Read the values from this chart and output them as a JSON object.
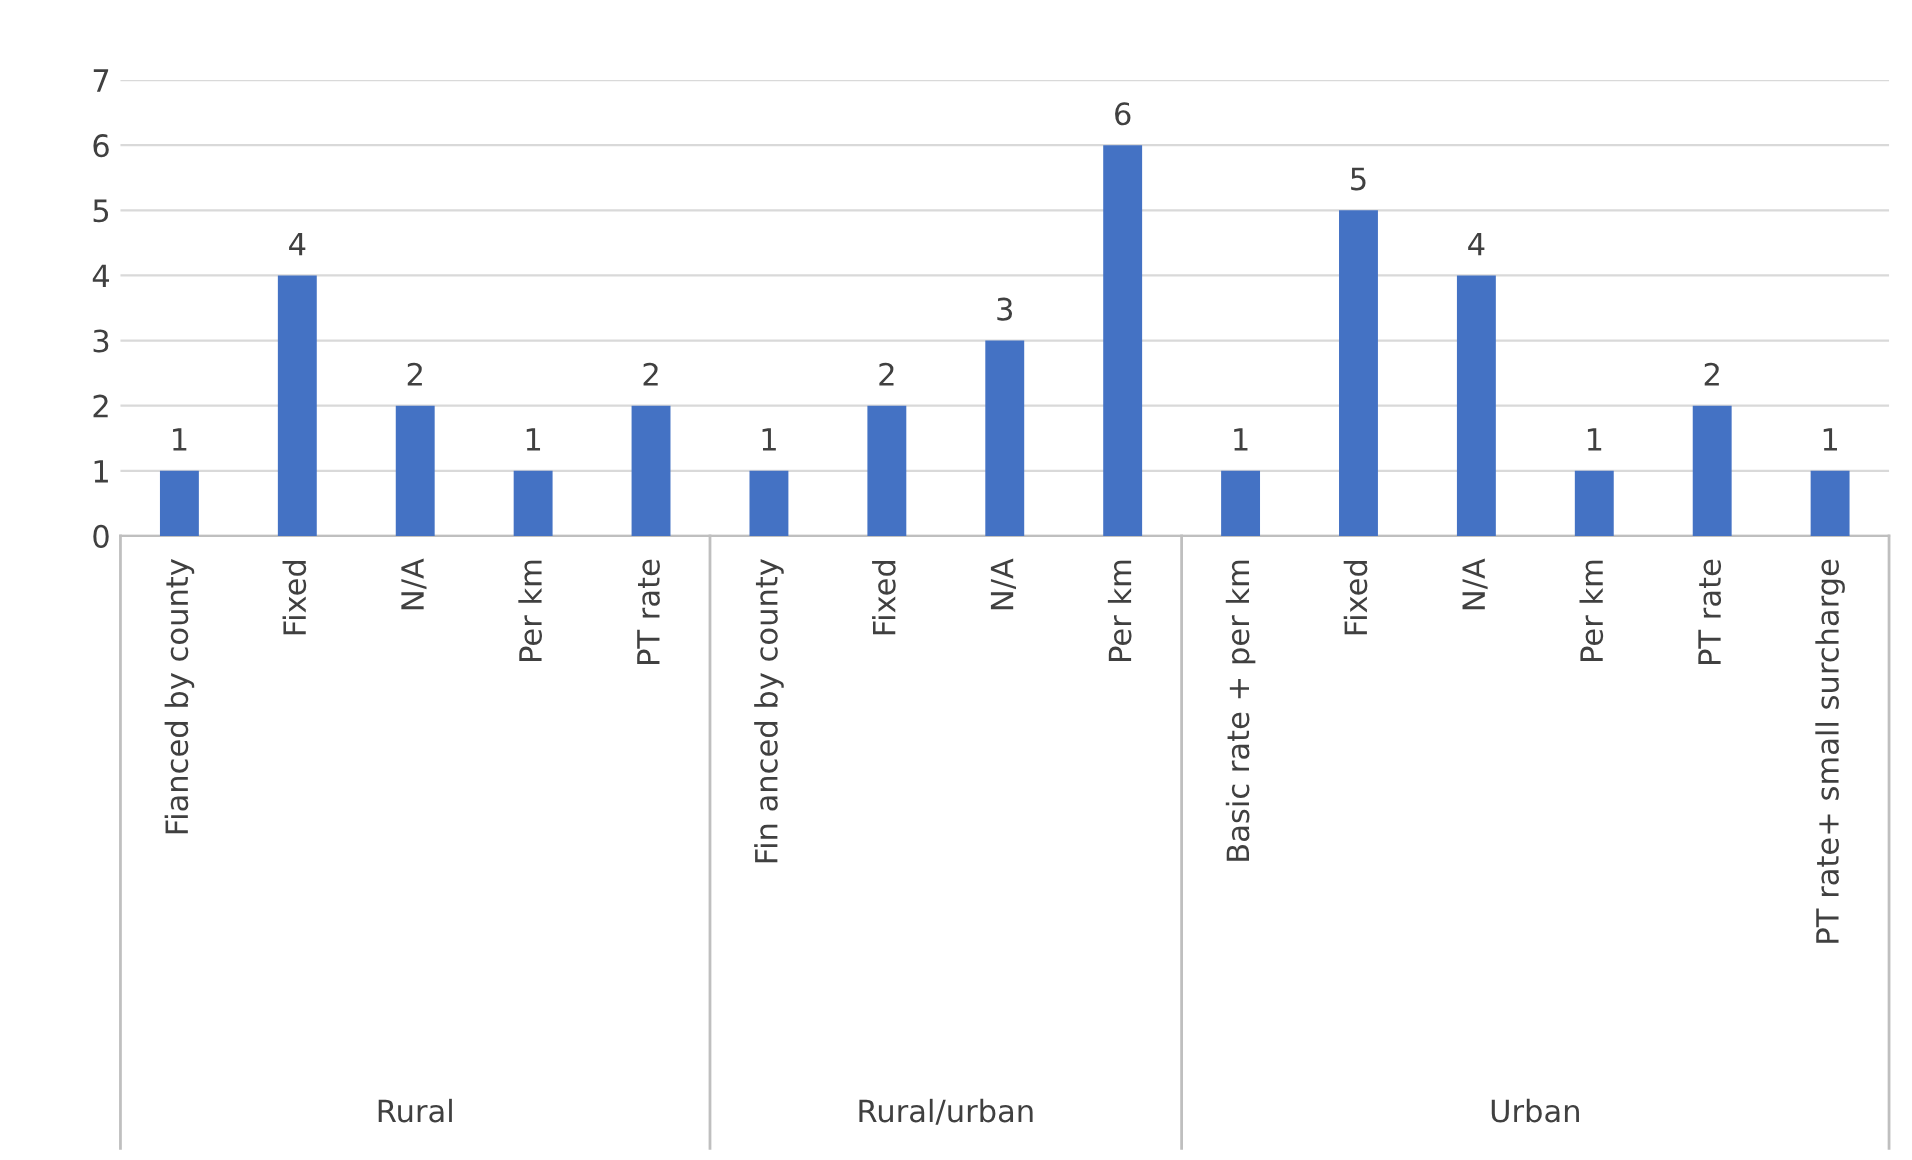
{
  "chart_data": {
    "type": "bar",
    "categories": [
      "Fianced by county",
      "Fixed",
      "N/A",
      "Per km",
      "PT rate",
      "Fin anced by county",
      "Fixed",
      "N/A",
      "Per km",
      "Basic rate + per km",
      "Fixed",
      "N/A",
      "Per km",
      "PT rate",
      "PT rate+ small surcharge"
    ],
    "values": [
      1,
      4,
      2,
      1,
      2,
      1,
      2,
      3,
      6,
      1,
      5,
      4,
      1,
      2,
      1
    ],
    "color": "#4472c4",
    "ylim": [
      0,
      7
    ],
    "yticks": [
      0,
      1,
      2,
      3,
      4,
      5,
      6,
      7
    ],
    "grid": "y",
    "data_labels": true,
    "annotations": [
      "Rural",
      "Rural/urban",
      "Urban"
    ]
  }
}
